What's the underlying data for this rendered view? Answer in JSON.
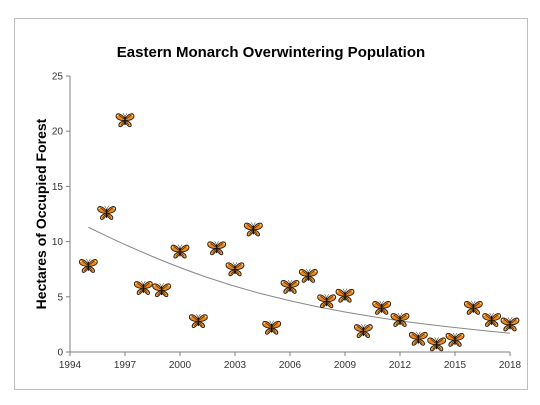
{
  "chart_data": {
    "type": "scatter",
    "title": "Eastern Monarch Overwintering Population",
    "xlabel": "",
    "ylabel": "Hectares of Occupied Forest",
    "xlim": [
      1994,
      2018
    ],
    "ylim": [
      0,
      25
    ],
    "x_ticks": [
      "1994",
      "1997",
      "2000",
      "2003",
      "2006",
      "2009",
      "2012",
      "2015",
      "2018"
    ],
    "y_ticks": [
      "0",
      "5",
      "10",
      "15",
      "20",
      "25"
    ],
    "grid": false,
    "legend": "none",
    "marker": "butterfly-icon",
    "series": [
      {
        "x": [
          1995,
          1996,
          1997,
          1998,
          1999,
          2000,
          2001,
          2002,
          2003,
          2004,
          2005,
          2006,
          2007,
          2008,
          2009,
          2010,
          2011,
          2012,
          2013,
          2014,
          2015,
          2016,
          2017,
          2018
        ],
        "values": [
          7.8,
          12.6,
          21.0,
          5.8,
          5.6,
          9.1,
          2.8,
          9.4,
          7.5,
          11.1,
          2.2,
          5.9,
          6.9,
          4.6,
          5.1,
          1.9,
          4.0,
          2.9,
          1.2,
          0.7,
          1.1,
          4.0,
          2.9,
          2.5
        ]
      }
    ],
    "trendline": {
      "type": "exponential",
      "x": [
        1995,
        1997,
        2000,
        2003,
        2006,
        2009,
        2012,
        2015,
        2018
      ],
      "values": [
        11.3,
        9.7,
        7.6,
        5.9,
        4.6,
        3.6,
        2.8,
        2.2,
        1.7
      ]
    },
    "colors": {
      "trendline": "#888888",
      "axis": "#7f7f7f",
      "marker_wing": "#e8891c",
      "marker_vein": "#2b1a0e",
      "frame": "#bfbfbf"
    }
  }
}
